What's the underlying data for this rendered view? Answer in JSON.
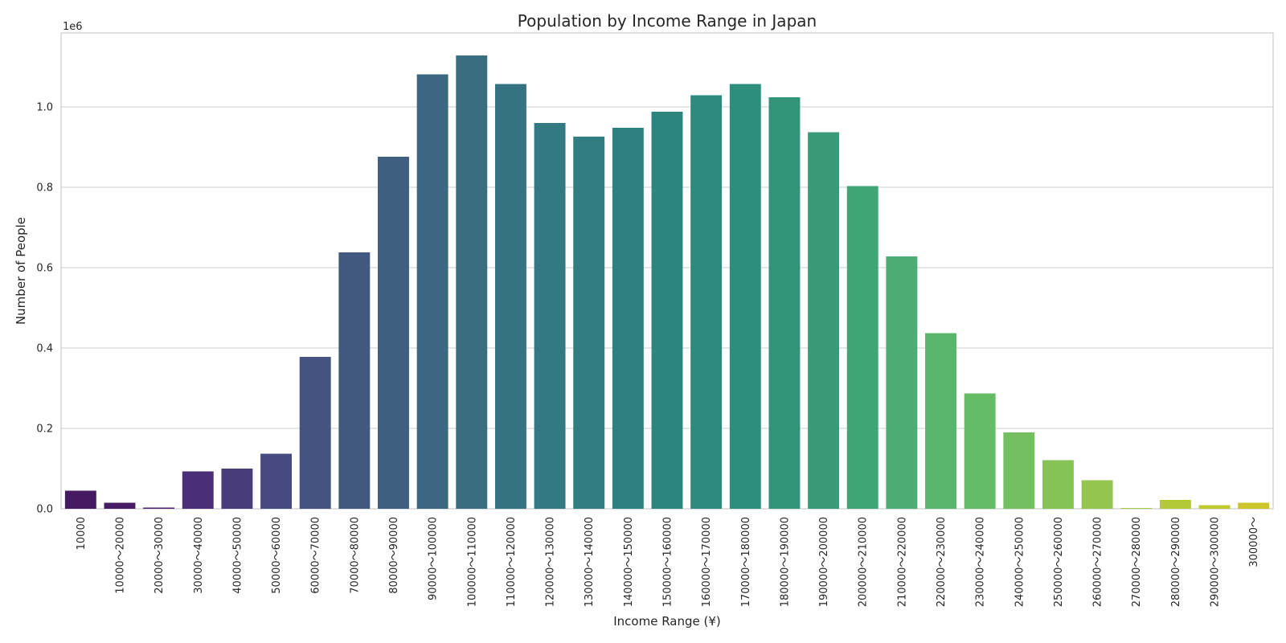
{
  "chart_data": {
    "type": "bar",
    "title": "Population by Income Range in Japan",
    "xlabel": "Income Range (¥)",
    "ylabel": "Number of People",
    "y_multiplier_label": "1e6",
    "y_tick_labels": [
      "0.0",
      "0.2",
      "0.4",
      "0.6",
      "0.8",
      "1.0"
    ],
    "y_tick_values": [
      0,
      200000,
      400000,
      600000,
      800000,
      1000000
    ],
    "ylim": [
      0,
      1184000
    ],
    "grid": "horizontal",
    "palette": "viridis",
    "categories": [
      "10000",
      "10000～20000",
      "20000～30000",
      "30000～40000",
      "40000～50000",
      "50000～60000",
      "60000～70000",
      "70000～80000",
      "80000～90000",
      "90000～100000",
      "100000～110000",
      "110000～120000",
      "120000～130000",
      "130000～140000",
      "140000～150000",
      "150000～160000",
      "160000～170000",
      "170000～180000",
      "180000～190000",
      "190000～200000",
      "200000～210000",
      "210000～220000",
      "220000～230000",
      "230000～240000",
      "240000～250000",
      "250000～260000",
      "260000～270000",
      "270000～280000",
      "280000～290000",
      "290000～300000",
      "300000～"
    ],
    "values": [
      45000,
      15000,
      3000,
      93000,
      100000,
      137000,
      378000,
      638000,
      876000,
      1081000,
      1128000,
      1057000,
      960000,
      926000,
      948000,
      988000,
      1029000,
      1057000,
      1024000,
      937000,
      803000,
      628000,
      437000,
      287000,
      190000,
      121000,
      71000,
      2000,
      22000,
      9000,
      15000
    ],
    "colors": [
      "#461a62",
      "#471d68",
      "#48206f",
      "#4a2e77",
      "#493c7a",
      "#474a7e",
      "#44537f",
      "#42597f",
      "#3f5f80",
      "#3b6780",
      "#386d80",
      "#357381",
      "#337981",
      "#317d81",
      "#2f8080",
      "#2d8580",
      "#2d8a7f",
      "#2e8e7d",
      "#319478",
      "#389a77",
      "#40a575",
      "#4cac73",
      "#58b56b",
      "#65bc67",
      "#74bf60",
      "#86c356",
      "#94c64f",
      "#a5c942",
      "#b4c838",
      "#c1c930",
      "#cbc52b"
    ]
  }
}
